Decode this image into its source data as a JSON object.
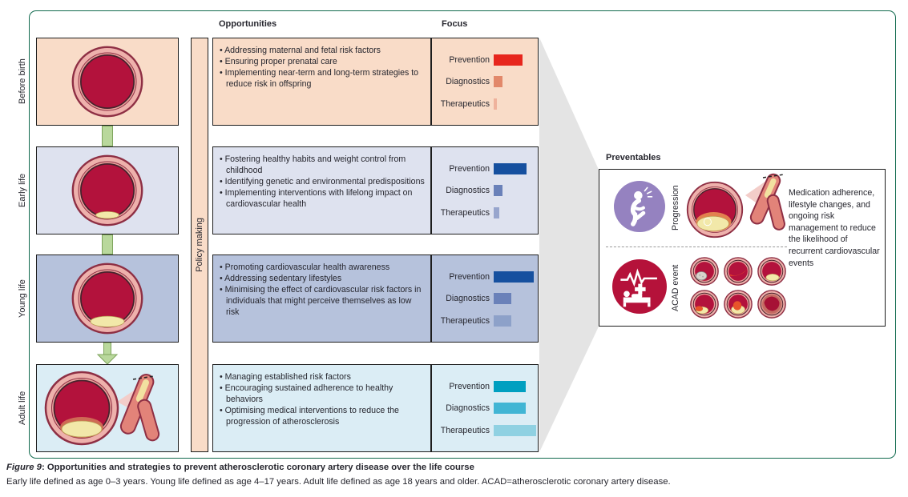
{
  "figure": {
    "columns": {
      "opportunities": "Opportunities",
      "focus": "Focus"
    },
    "policy_label": "Policy making",
    "stages": [
      {
        "label": "Before birth",
        "bullets": [
          "Addressing maternal and fetal risk factors",
          "Ensuring proper prenatal care",
          "Implementing near-term and long-term strategies to reduce risk in offspring"
        ],
        "focus": [
          {
            "label": "Prevention",
            "value": 36,
            "color": "#e7261d"
          },
          {
            "label": "Diagnostics",
            "value": 11,
            "color": "#e2886a"
          },
          {
            "label": "Therapeutics",
            "value": 4,
            "color": "#efb29c"
          }
        ]
      },
      {
        "label": "Early life",
        "bullets": [
          "Fostering healthy habits and weight control from childhood",
          "Identifying genetic and environmental predispositions",
          "Implementing interventions with lifelong impact on cardiovascular health"
        ],
        "focus": [
          {
            "label": "Prevention",
            "value": 41,
            "color": "#16509f"
          },
          {
            "label": "Diagnostics",
            "value": 11,
            "color": "#6a81b9"
          },
          {
            "label": "Therapeutics",
            "value": 7,
            "color": "#97a5cd"
          }
        ]
      },
      {
        "label": "Young life",
        "bullets": [
          "Promoting cardiovascular health awareness",
          "Addressing sedentary lifestyles",
          "Minimising the effect of cardiovascular risk factors in individuals that might perceive themselves as low risk"
        ],
        "focus": [
          {
            "label": "Prevention",
            "value": 50,
            "color": "#16509f"
          },
          {
            "label": "Diagnostics",
            "value": 22,
            "color": "#6a81b9"
          },
          {
            "label": "Therapeutics",
            "value": 22,
            "color": "#8da1c9"
          }
        ]
      },
      {
        "label": "Adult life",
        "bullets": [
          "Managing established risk factors",
          "Encouraging sustained adherence to healthy behaviors",
          "Optimising medical interventions to reduce the progression of atherosclerosis"
        ],
        "focus": [
          {
            "label": "Prevention",
            "value": 40,
            "color": "#009fc0"
          },
          {
            "label": "Diagnostics",
            "value": 40,
            "color": "#41b5d4"
          },
          {
            "label": "Therapeutics",
            "value": 53,
            "color": "#8fd1e2"
          }
        ]
      }
    ],
    "preventables": {
      "title": "Preventables",
      "progression_label": "Progression",
      "acad_label": "ACAD event",
      "note": "Medication adherence, lifestyle changes, and ongoing risk management to reduce the likelihood of recurrent cardiovascular events"
    },
    "caption": {
      "figure_label": "Figure 9",
      "title": ": Opportunities and strategies to prevent atherosclerotic coronary artery disease over the life course",
      "note": "Early life defined as age 0–3 years. Young life defined as age 4–17 years. Adult life defined as age 18 years and older. ACAD=atherosclerotic coronary artery disease."
    },
    "colors": {
      "border_green": "#116a4e",
      "stage_backgrounds": [
        "#f9dcc8",
        "#dee2ef",
        "#b6c2dc",
        "#dbedf5"
      ],
      "policy_strip": "#f9dcc8",
      "connector_green": "#b9d89c",
      "gray_connector": "#e4e4e4",
      "progression_purple": "#9582c0",
      "acad_crimson": "#b5123a",
      "artery_lumen": "#b3123c",
      "plaque_yellow": "#f2e8a9"
    }
  }
}
